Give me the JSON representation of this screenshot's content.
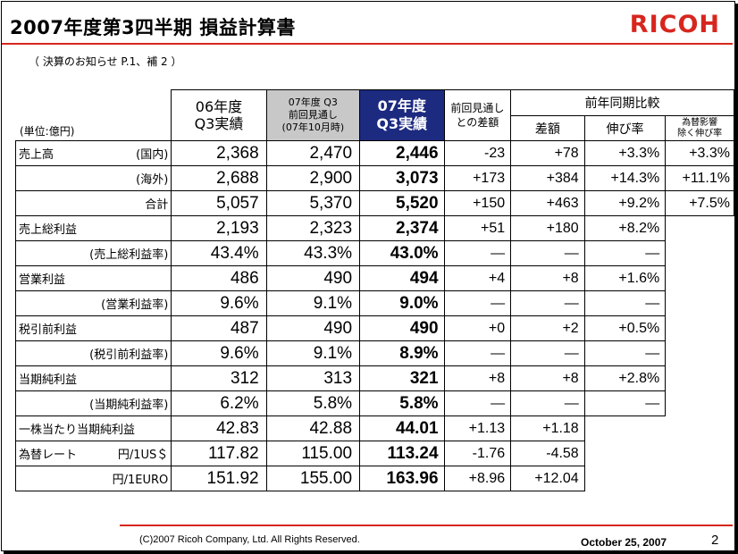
{
  "header": {
    "title": "2007年度第3四半期 損益計算書",
    "logo": "RICOH",
    "subtitle": "（ 決算のお知らせ P.1、補 2 ）"
  },
  "table": {
    "unit_label": "(単位:億円)",
    "col_fy06": [
      "06年度",
      "Q3実績"
    ],
    "col_plan": [
      "07年度 Q3",
      "前回見通し",
      "(07年10月時)"
    ],
    "col_fy07": [
      "07年度",
      "Q3実績"
    ],
    "col_diff": [
      "前回見通し",
      "との差額"
    ],
    "col_yoy_group": "前年同期比較",
    "col_amount": "差額",
    "col_growth": "伸び率",
    "col_fx": [
      "為替影響",
      "除く伸び率"
    ],
    "rows": [
      {
        "label": "売上高",
        "sub": "(国内)",
        "fy06": "2,368",
        "plan": "2,470",
        "fy07": "2,446",
        "diff": "-23",
        "amount": "+78",
        "growth": "+3.3%",
        "fx": "+3.3%"
      },
      {
        "label": "",
        "sub": "(海外)",
        "fy06": "2,688",
        "plan": "2,900",
        "fy07": "3,073",
        "diff": "+173",
        "amount": "+384",
        "growth": "+14.3%",
        "fx": "+11.1%"
      },
      {
        "label": "",
        "sub": "合計",
        "fy06": "5,057",
        "plan": "5,370",
        "fy07": "5,520",
        "diff": "+150",
        "amount": "+463",
        "growth": "+9.2%",
        "fx": "+7.5%"
      },
      {
        "label": "売上総利益",
        "sub": "",
        "fy06": "2,193",
        "plan": "2,323",
        "fy07": "2,374",
        "diff": "+51",
        "amount": "+180",
        "growth": "+8.2%"
      },
      {
        "label": "",
        "sub": "(売上総利益率)",
        "fy06": "43.4%",
        "plan": "43.3%",
        "fy07": "43.0%",
        "diff": "—",
        "amount": "—",
        "growth": "—"
      },
      {
        "label": "営業利益",
        "sub": "",
        "fy06": "486",
        "plan": "490",
        "fy07": "494",
        "diff": "+4",
        "amount": "+8",
        "growth": "+1.6%"
      },
      {
        "label": "",
        "sub": "(営業利益率)",
        "fy06": "9.6%",
        "plan": "9.1%",
        "fy07": "9.0%",
        "diff": "—",
        "amount": "—",
        "growth": "—"
      },
      {
        "label": "税引前利益",
        "sub": "",
        "fy06": "487",
        "plan": "490",
        "fy07": "490",
        "diff": "+0",
        "amount": "+2",
        "growth": "+0.5%"
      },
      {
        "label": "",
        "sub": "(税引前利益率)",
        "fy06": "9.6%",
        "plan": "9.1%",
        "fy07": "8.9%",
        "diff": "—",
        "amount": "—",
        "growth": "—"
      },
      {
        "label": "当期純利益",
        "sub": "",
        "fy06": "312",
        "plan": "313",
        "fy07": "321",
        "diff": "+8",
        "amount": "+8",
        "growth": "+2.8%"
      },
      {
        "label": "",
        "sub": "(当期純利益率)",
        "fy06": "6.2%",
        "plan": "5.8%",
        "fy07": "5.8%",
        "diff": "—",
        "amount": "—",
        "growth": "—"
      },
      {
        "label": "一株当たり当期純利益",
        "sub": "",
        "fy06": "42.83",
        "plan": "42.88",
        "fy07": "44.01",
        "diff": "+1.13",
        "amount": "+1.18"
      },
      {
        "label": "為替レート",
        "sub": "円/1US＄",
        "fy06": "117.82",
        "plan": "115.00",
        "fy07": "113.24",
        "diff": "-1.76",
        "amount": "-4.58"
      },
      {
        "label": "",
        "sub": "円/1EURO",
        "fy06": "151.92",
        "plan": "155.00",
        "fy07": "163.96",
        "diff": "+8.96",
        "amount": "+12.04"
      }
    ]
  },
  "footer": {
    "copyright": "(C)2007 Ricoh Company, Ltd. All Rights Reserved.",
    "date": "October 25, 2007",
    "page": "2"
  }
}
